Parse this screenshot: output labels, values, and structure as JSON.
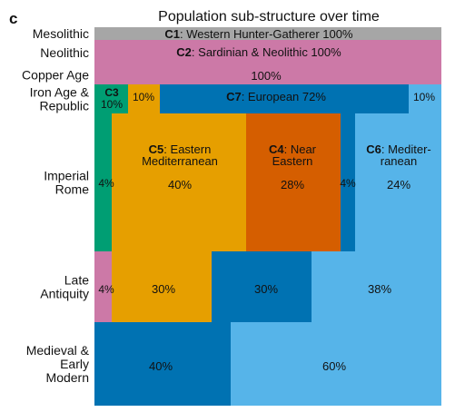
{
  "panel_label": "c",
  "chart_data": {
    "type": "mosaic",
    "title": "Population sub-structure over time",
    "periods": [
      "Mesolithic",
      "Neolithic",
      "Copper Age",
      "Iron Age & Republic",
      "Imperial Rome",
      "Late Antiquity",
      "Medieval & Early Modern"
    ],
    "period_labels": [
      {
        "lines": [
          "Mesolithic"
        ]
      },
      {
        "lines": [
          "Neolithic"
        ]
      },
      {
        "lines": [
          "Copper Age"
        ]
      },
      {
        "lines": [
          "Iron Age &",
          "Republic"
        ]
      },
      {
        "lines": [
          "Imperial",
          "Rome"
        ]
      },
      {
        "lines": [
          "Late",
          "Antiquity"
        ]
      },
      {
        "lines": [
          "Medieval &",
          "Early",
          "Modern"
        ]
      }
    ],
    "clusters": [
      {
        "id": "C1",
        "name": "Western Hunter-Gatherer",
        "color": "#a6a6a6"
      },
      {
        "id": "C2",
        "name": "Sardinian & Neolithic",
        "color": "#cc79a7"
      },
      {
        "id": "C3",
        "name": "",
        "color": "#009e73"
      },
      {
        "id": "C4",
        "name": "Near Eastern",
        "color": "#d55e00"
      },
      {
        "id": "C5",
        "name": "Eastern Mediterranean",
        "color": "#e69f00"
      },
      {
        "id": "C6",
        "name": "Mediterranean",
        "color": "#56b4e9"
      },
      {
        "id": "C7",
        "name": "European",
        "color": "#0072b2"
      }
    ],
    "segments": [
      {
        "period": "Mesolithic",
        "cluster": "C1",
        "percent": 100
      },
      {
        "period": "Neolithic",
        "cluster": "C2",
        "percent": 100
      },
      {
        "period": "Copper Age",
        "cluster": "C2",
        "percent": 100
      },
      {
        "period": "Iron Age & Republic",
        "cluster": "C3",
        "percent": 10
      },
      {
        "period": "Iron Age & Republic",
        "cluster": "C5",
        "percent": 10
      },
      {
        "period": "Iron Age & Republic",
        "cluster": "C7",
        "percent": 72
      },
      {
        "period": "Iron Age & Republic",
        "cluster": "C6",
        "percent": 10
      },
      {
        "period": "Imperial Rome",
        "cluster": "C3",
        "percent": 4
      },
      {
        "period": "Imperial Rome",
        "cluster": "C5",
        "percent": 40
      },
      {
        "period": "Imperial Rome",
        "cluster": "C4",
        "percent": 28
      },
      {
        "period": "Imperial Rome",
        "cluster": "C7",
        "percent": 4
      },
      {
        "period": "Imperial Rome",
        "cluster": "C6",
        "percent": 24
      },
      {
        "period": "Late Antiquity",
        "cluster": "C2",
        "percent": 4
      },
      {
        "period": "Late Antiquity",
        "cluster": "C5",
        "percent": 30
      },
      {
        "period": "Late Antiquity",
        "cluster": "C7",
        "percent": 30
      },
      {
        "period": "Late Antiquity",
        "cluster": "C6",
        "percent": 38
      },
      {
        "period": "Medieval & Early Modern",
        "cluster": "C7",
        "percent": 40
      },
      {
        "period": "Medieval & Early Modern",
        "cluster": "C6",
        "percent": 60
      }
    ],
    "annotations": [
      {
        "id": "mesolithic-c1",
        "lines": [
          {
            "bold": "C1",
            "rest": ": Western Hunter-Gatherer 100%"
          }
        ]
      },
      {
        "id": "neolithic-c2",
        "lines": [
          {
            "bold": "C2",
            "rest": ": Sardinian & Neolithic 100%"
          }
        ]
      },
      {
        "id": "copper-c2",
        "lines": [
          {
            "bold": "",
            "rest": "100%"
          }
        ]
      },
      {
        "id": "iron-c3",
        "lines": [
          {
            "bold": "C3",
            "rest": ""
          },
          {
            "bold": "",
            "rest": "10%"
          }
        ]
      },
      {
        "id": "iron-c5",
        "lines": [
          {
            "bold": "",
            "rest": "10%"
          }
        ]
      },
      {
        "id": "iron-c7",
        "lines": [
          {
            "bold": "C7",
            "rest": ": European    72%"
          }
        ]
      },
      {
        "id": "iron-c6",
        "lines": [
          {
            "bold": "",
            "rest": "10%"
          }
        ]
      },
      {
        "id": "imperial-c3",
        "lines": [
          {
            "bold": "",
            "rest": "4%"
          }
        ]
      },
      {
        "id": "imperial-c5",
        "lines": [
          {
            "bold": "C5",
            "rest": ": Eastern"
          },
          {
            "bold": "",
            "rest": "Mediterranean"
          },
          {
            "bold": "",
            "rest": ""
          },
          {
            "bold": "",
            "rest": "40%"
          }
        ]
      },
      {
        "id": "imperial-c4",
        "lines": [
          {
            "bold": "C4",
            "rest": ": Near"
          },
          {
            "bold": "",
            "rest": "Eastern"
          },
          {
            "bold": "",
            "rest": ""
          },
          {
            "bold": "",
            "rest": "28%"
          }
        ]
      },
      {
        "id": "imperial-c7",
        "lines": [
          {
            "bold": "",
            "rest": "4%"
          }
        ]
      },
      {
        "id": "imperial-c6",
        "lines": [
          {
            "bold": "C6",
            "rest": ": Mediter-"
          },
          {
            "bold": "",
            "rest": "ranean"
          },
          {
            "bold": "",
            "rest": ""
          },
          {
            "bold": "",
            "rest": "24%"
          }
        ]
      },
      {
        "id": "late-c2",
        "lines": [
          {
            "bold": "",
            "rest": "4%"
          }
        ]
      },
      {
        "id": "late-c5",
        "lines": [
          {
            "bold": "",
            "rest": "30%"
          }
        ]
      },
      {
        "id": "late-c7",
        "lines": [
          {
            "bold": "",
            "rest": "30%"
          }
        ]
      },
      {
        "id": "late-c6",
        "lines": [
          {
            "bold": "",
            "rest": "38%"
          }
        ]
      },
      {
        "id": "medieval-c7",
        "lines": [
          {
            "bold": "",
            "rest": "40%"
          }
        ]
      },
      {
        "id": "medieval-c6",
        "lines": [
          {
            "bold": "",
            "rest": "60%"
          }
        ]
      }
    ]
  }
}
